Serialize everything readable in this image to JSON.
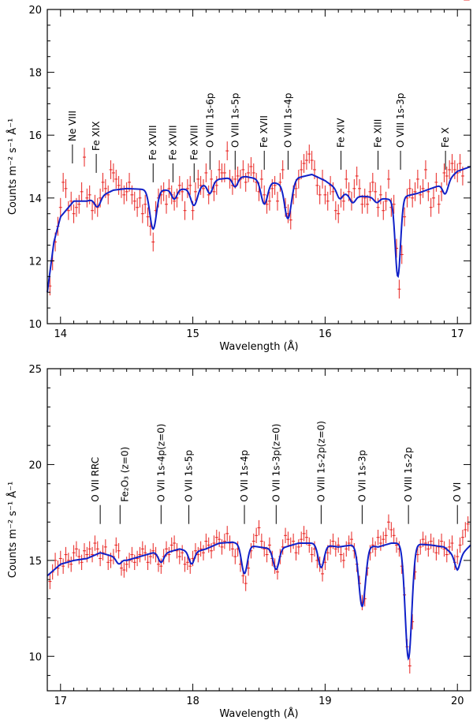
{
  "colors": {
    "data": "#e8221f",
    "model": "#1020c8",
    "axes": "#000000",
    "background": "#ffffff"
  },
  "chart_data": [
    {
      "type": "line",
      "panel": "top",
      "xlabel": "Wavelength (Å)",
      "ylabel": "Counts m⁻² s⁻¹ Å⁻¹",
      "xlim": [
        13.9,
        17.1
      ],
      "ylim": [
        10,
        20
      ],
      "xticks": [
        14,
        15,
        16,
        17
      ],
      "xtick_labels": [
        "14",
        "15",
        "16",
        "17"
      ],
      "yticks": [
        10,
        12,
        14,
        16,
        18,
        20
      ],
      "ytick_labels": [
        "10",
        "12",
        "14",
        "16",
        "18",
        "20"
      ],
      "line_labels": [
        {
          "wl": 14.09,
          "y_end": 15.1,
          "text": "Ne VIII"
        },
        {
          "wl": 14.27,
          "y_end": 14.8,
          "text": "Fe XIX"
        },
        {
          "wl": 14.7,
          "y_end": 14.5,
          "text": "Fe XVIII"
        },
        {
          "wl": 14.85,
          "y_end": 14.5,
          "text": "Fe XVIII"
        },
        {
          "wl": 15.01,
          "y_end": 14.5,
          "text": "Fe XVIII"
        },
        {
          "wl": 15.13,
          "y_end": 14.9,
          "text": "O VIII  1s-6p"
        },
        {
          "wl": 15.32,
          "y_end": 14.9,
          "text": "O VIII  1s-5p"
        },
        {
          "wl": 15.54,
          "y_end": 14.9,
          "text": "Fe XVII"
        },
        {
          "wl": 15.72,
          "y_end": 14.9,
          "text": "O VIII  1s-4p"
        },
        {
          "wl": 16.12,
          "y_end": 14.9,
          "text": "Fe XIV"
        },
        {
          "wl": 16.4,
          "y_end": 14.9,
          "text": "Fe XIII"
        },
        {
          "wl": 16.57,
          "y_end": 14.9,
          "text": "O VIII  1s-3p"
        },
        {
          "wl": 16.91,
          "y_end": 14.9,
          "text": "Fe X"
        }
      ],
      "model_continuum": [
        [
          13.9,
          11.0
        ],
        [
          13.95,
          12.6
        ],
        [
          14.0,
          13.4
        ],
        [
          14.1,
          13.9
        ],
        [
          14.2,
          13.9
        ],
        [
          14.3,
          14.05
        ],
        [
          14.4,
          14.25
        ],
        [
          14.5,
          14.3
        ],
        [
          14.6,
          14.28
        ],
        [
          14.8,
          14.25
        ],
        [
          15.0,
          14.3
        ],
        [
          15.1,
          14.45
        ],
        [
          15.2,
          14.6
        ],
        [
          15.3,
          14.65
        ],
        [
          15.4,
          14.68
        ],
        [
          15.5,
          14.6
        ],
        [
          15.6,
          14.5
        ],
        [
          15.7,
          14.4
        ],
        [
          15.8,
          14.65
        ],
        [
          15.9,
          14.75
        ],
        [
          16.0,
          14.55
        ],
        [
          16.1,
          14.25
        ],
        [
          16.2,
          14.05
        ],
        [
          16.3,
          14.05
        ],
        [
          16.4,
          14.0
        ],
        [
          16.5,
          13.95
        ],
        [
          16.6,
          14.05
        ],
        [
          16.7,
          14.15
        ],
        [
          16.8,
          14.3
        ],
        [
          16.9,
          14.45
        ],
        [
          17.0,
          14.85
        ],
        [
          17.1,
          15.0
        ]
      ],
      "model_absorptions": [
        {
          "wl": 14.28,
          "depth": 0.3,
          "sigma": 0.022
        },
        {
          "wl": 14.7,
          "depth": 1.25,
          "sigma": 0.025
        },
        {
          "wl": 14.86,
          "depth": 0.3,
          "sigma": 0.02
        },
        {
          "wl": 15.01,
          "depth": 0.55,
          "sigma": 0.025
        },
        {
          "wl": 15.13,
          "depth": 0.35,
          "sigma": 0.02
        },
        {
          "wl": 15.32,
          "depth": 0.3,
          "sigma": 0.02
        },
        {
          "wl": 15.54,
          "depth": 0.75,
          "sigma": 0.025
        },
        {
          "wl": 15.72,
          "depth": 1.1,
          "sigma": 0.025
        },
        {
          "wl": 16.11,
          "depth": 0.25,
          "sigma": 0.02
        },
        {
          "wl": 16.21,
          "depth": 0.2,
          "sigma": 0.02
        },
        {
          "wl": 16.39,
          "depth": 0.15,
          "sigma": 0.02
        },
        {
          "wl": 16.55,
          "depth": 2.5,
          "sigma": 0.02
        },
        {
          "wl": 16.91,
          "depth": 0.35,
          "sigma": 0.02
        }
      ],
      "points_wavelength": [
        13.92,
        13.94,
        13.96,
        13.98,
        14.0,
        14.02,
        14.04,
        14.06,
        14.08,
        14.1,
        14.12,
        14.14,
        14.16,
        14.18,
        14.2,
        14.22,
        14.24,
        14.26,
        14.28,
        14.3,
        14.32,
        14.34,
        14.36,
        14.38,
        14.4,
        14.42,
        14.44,
        14.46,
        14.48,
        14.5,
        14.52,
        14.54,
        14.56,
        14.58,
        14.6,
        14.62,
        14.64,
        14.66,
        14.68,
        14.7,
        14.72,
        14.74,
        14.76,
        14.78,
        14.8,
        14.82,
        14.84,
        14.86,
        14.88,
        14.9,
        14.92,
        14.94,
        14.96,
        14.98,
        15.0,
        15.02,
        15.04,
        15.06,
        15.08,
        15.1,
        15.12,
        15.14,
        15.16,
        15.18,
        15.2,
        15.22,
        15.24,
        15.26,
        15.28,
        15.3,
        15.32,
        15.34,
        15.36,
        15.38,
        15.4,
        15.42,
        15.44,
        15.46,
        15.48,
        15.5,
        15.52,
        15.54,
        15.56,
        15.58,
        15.6,
        15.62,
        15.64,
        15.66,
        15.68,
        15.7,
        15.72,
        15.74,
        15.76,
        15.78,
        15.8,
        15.82,
        15.84,
        15.86,
        15.88,
        15.9,
        15.92,
        15.94,
        15.96,
        15.98,
        16.0,
        16.02,
        16.04,
        16.06,
        16.08,
        16.1,
        16.12,
        16.14,
        16.16,
        16.18,
        16.2,
        16.22,
        16.24,
        16.26,
        16.28,
        16.3,
        16.32,
        16.34,
        16.36,
        16.38,
        16.4,
        16.42,
        16.44,
        16.46,
        16.48,
        16.5,
        16.52,
        16.54,
        16.56,
        16.58,
        16.6,
        16.62,
        16.64,
        16.66,
        16.68,
        16.7,
        16.72,
        16.74,
        16.76,
        16.78,
        16.8,
        16.82,
        16.84,
        16.86,
        16.88,
        16.9,
        16.92,
        16.94,
        16.96,
        16.98,
        17.0,
        17.02,
        17.04,
        17.06,
        17.08
      ],
      "points_counts": [
        11.2,
        12.0,
        12.6,
        13.1,
        13.7,
        14.5,
        14.3,
        13.6,
        13.9,
        13.5,
        13.7,
        13.8,
        14.2,
        15.3,
        14.0,
        14.1,
        13.6,
        13.8,
        13.7,
        14.0,
        14.5,
        14.3,
        14.1,
        14.9,
        14.8,
        14.6,
        14.4,
        14.3,
        14.1,
        14.2,
        14.5,
        14.1,
        13.9,
        13.7,
        14.0,
        13.5,
        13.8,
        13.4,
        13.1,
        12.6,
        13.6,
        14.0,
        14.1,
        14.2,
        13.8,
        14.3,
        14.1,
        13.9,
        14.0,
        14.4,
        14.2,
        13.6,
        14.3,
        14.4,
        13.6,
        14.2,
        14.6,
        14.4,
        14.3,
        14.8,
        14.1,
        14.6,
        14.2,
        14.4,
        14.9,
        14.8,
        14.8,
        15.5,
        14.6,
        14.4,
        14.6,
        14.7,
        14.6,
        14.9,
        14.5,
        14.8,
        15.0,
        14.8,
        14.5,
        14.2,
        14.6,
        14.1,
        13.8,
        13.9,
        14.3,
        14.4,
        13.9,
        14.5,
        14.9,
        13.7,
        13.5,
        13.3,
        14.1,
        14.3,
        14.6,
        14.9,
        15.1,
        15.2,
        15.4,
        15.2,
        14.9,
        14.4,
        14.1,
        14.6,
        14.1,
        13.9,
        14.4,
        14.2,
        13.6,
        13.5,
        14.0,
        13.9,
        14.6,
        14.2,
        13.9,
        14.3,
        14.7,
        14.3,
        13.8,
        14.0,
        13.8,
        14.2,
        14.5,
        14.2,
        13.7,
        14.1,
        13.6,
        13.9,
        14.6,
        13.7,
        13.8,
        12.4,
        11.1,
        12.2,
        13.4,
        14.0,
        14.3,
        14.0,
        14.2,
        14.6,
        14.1,
        14.3,
        14.9,
        14.2,
        13.7,
        14.0,
        14.5,
        13.8,
        14.2,
        14.8,
        14.7,
        14.9,
        15.1,
        14.9,
        14.8,
        15.1,
        14.7
      ],
      "points_error": 0.3
    },
    {
      "type": "line",
      "panel": "bottom",
      "xlabel": "Wavelength (Å)",
      "ylabel": "Counts m⁻² s⁻¹ Å⁻¹",
      "xlim": [
        16.9,
        20.1
      ],
      "ylim": [
        8.2,
        25
      ],
      "xticks": [
        17,
        18,
        19,
        20
      ],
      "xtick_labels": [
        "17",
        "18",
        "19",
        "20"
      ],
      "yticks": [
        10,
        15,
        20,
        25
      ],
      "ytick_labels": [
        "10",
        "15",
        "20",
        "25"
      ],
      "line_labels": [
        {
          "wl": 17.3,
          "y_end": 16.9,
          "text": "O VII RRC",
          "offset": -1
        },
        {
          "wl": 17.45,
          "y_end": 16.9,
          "text": "Fe₂O₃ (z=0)",
          "offset": 1
        },
        {
          "wl": 17.76,
          "y_end": 16.9,
          "text": "O VII  1s-4p(z=0)"
        },
        {
          "wl": 17.97,
          "y_end": 16.9,
          "text": "O VII  1s-5p"
        },
        {
          "wl": 18.39,
          "y_end": 16.9,
          "text": "O VII  1s-4p"
        },
        {
          "wl": 18.63,
          "y_end": 16.9,
          "text": "O VII  1s-3p(z=0)"
        },
        {
          "wl": 18.97,
          "y_end": 16.9,
          "text": "O VIII  1s-2p(z=0)"
        },
        {
          "wl": 19.28,
          "y_end": 16.9,
          "text": "O VII  1s-3p"
        },
        {
          "wl": 19.63,
          "y_end": 16.9,
          "text": "O VIII  1s-2p"
        },
        {
          "wl": 20.0,
          "y_end": 16.9,
          "text": "O VI"
        }
      ],
      "model_continuum": [
        [
          16.9,
          14.2
        ],
        [
          17.0,
          14.8
        ],
        [
          17.1,
          15.0
        ],
        [
          17.2,
          15.1
        ],
        [
          17.3,
          15.4
        ],
        [
          17.4,
          15.2
        ],
        [
          17.5,
          15.0
        ],
        [
          17.6,
          15.2
        ],
        [
          17.7,
          15.4
        ],
        [
          17.8,
          15.4
        ],
        [
          17.9,
          15.6
        ],
        [
          18.0,
          15.4
        ],
        [
          18.1,
          15.6
        ],
        [
          18.2,
          15.9
        ],
        [
          18.3,
          15.95
        ],
        [
          18.4,
          15.8
        ],
        [
          18.5,
          15.7
        ],
        [
          18.6,
          15.6
        ],
        [
          18.7,
          15.7
        ],
        [
          18.8,
          15.9
        ],
        [
          18.9,
          15.9
        ],
        [
          19.0,
          15.8
        ],
        [
          19.1,
          15.7
        ],
        [
          19.2,
          15.8
        ],
        [
          19.3,
          15.8
        ],
        [
          19.4,
          15.7
        ],
        [
          19.5,
          15.9
        ],
        [
          19.6,
          15.9
        ],
        [
          19.7,
          15.85
        ],
        [
          19.8,
          15.8
        ],
        [
          19.9,
          15.7
        ],
        [
          20.0,
          15.1
        ],
        [
          20.1,
          15.8
        ]
      ],
      "model_absorptions": [
        {
          "wl": 17.44,
          "depth": 0.3,
          "sigma": 0.02
        },
        {
          "wl": 17.76,
          "depth": 0.5,
          "sigma": 0.02
        },
        {
          "wl": 17.99,
          "depth": 0.6,
          "sigma": 0.02
        },
        {
          "wl": 18.39,
          "depth": 1.5,
          "sigma": 0.022
        },
        {
          "wl": 18.63,
          "depth": 1.1,
          "sigma": 0.022
        },
        {
          "wl": 18.97,
          "depth": 1.2,
          "sigma": 0.022
        },
        {
          "wl": 19.28,
          "depth": 3.2,
          "sigma": 0.025
        },
        {
          "wl": 19.63,
          "depth": 6.0,
          "sigma": 0.025
        },
        {
          "wl": 20.0,
          "depth": 0.6,
          "sigma": 0.02
        }
      ],
      "points_wavelength": [
        16.92,
        16.94,
        16.96,
        16.98,
        17.0,
        17.02,
        17.04,
        17.06,
        17.08,
        17.1,
        17.12,
        17.14,
        17.16,
        17.18,
        17.2,
        17.22,
        17.24,
        17.26,
        17.28,
        17.3,
        17.32,
        17.34,
        17.36,
        17.38,
        17.4,
        17.42,
        17.44,
        17.46,
        17.48,
        17.5,
        17.52,
        17.54,
        17.56,
        17.58,
        17.6,
        17.62,
        17.64,
        17.66,
        17.68,
        17.7,
        17.72,
        17.74,
        17.76,
        17.78,
        17.8,
        17.82,
        17.84,
        17.86,
        17.88,
        17.9,
        17.92,
        17.94,
        17.96,
        17.98,
        18.0,
        18.02,
        18.04,
        18.06,
        18.08,
        18.1,
        18.12,
        18.14,
        18.16,
        18.18,
        18.2,
        18.22,
        18.24,
        18.26,
        18.28,
        18.3,
        18.32,
        18.34,
        18.36,
        18.38,
        18.4,
        18.42,
        18.44,
        18.46,
        18.48,
        18.5,
        18.52,
        18.54,
        18.56,
        18.58,
        18.6,
        18.62,
        18.64,
        18.66,
        18.68,
        18.7,
        18.72,
        18.74,
        18.76,
        18.78,
        18.8,
        18.82,
        18.84,
        18.86,
        18.88,
        18.9,
        18.92,
        18.94,
        18.96,
        18.98,
        19.0,
        19.02,
        19.04,
        19.06,
        19.08,
        19.1,
        19.12,
        19.14,
        19.16,
        19.18,
        19.2,
        19.22,
        19.24,
        19.26,
        19.28,
        19.3,
        19.32,
        19.34,
        19.36,
        19.38,
        19.4,
        19.42,
        19.44,
        19.46,
        19.48,
        19.5,
        19.52,
        19.54,
        19.56,
        19.58,
        19.6,
        19.62,
        19.64,
        19.66,
        19.68,
        19.7,
        19.72,
        19.74,
        19.76,
        19.78,
        19.8,
        19.82,
        19.84,
        19.86,
        19.88,
        19.9,
        19.92,
        19.94,
        19.96,
        19.98,
        20.0,
        20.02,
        20.04,
        20.06,
        20.08
      ],
      "points_counts": [
        13.9,
        14.4,
        15.0,
        14.6,
        15.1,
        14.7,
        15.3,
        15.0,
        14.8,
        15.4,
        15.6,
        15.2,
        14.9,
        15.5,
        15.3,
        15.6,
        15.3,
        15.9,
        15.6,
        15.1,
        15.4,
        15.7,
        14.9,
        15.0,
        15.2,
        15.8,
        15.5,
        14.6,
        14.5,
        14.8,
        15.0,
        15.3,
        14.9,
        15.1,
        15.3,
        15.6,
        15.4,
        14.9,
        15.2,
        15.5,
        15.3,
        14.8,
        14.7,
        15.2,
        15.6,
        15.3,
        15.8,
        15.9,
        15.5,
        15.2,
        15.4,
        14.8,
        14.9,
        14.7,
        15.1,
        15.5,
        15.3,
        15.6,
        15.4,
        16.0,
        15.8,
        15.5,
        15.9,
        16.2,
        16.1,
        15.7,
        16.0,
        16.4,
        15.9,
        15.6,
        15.2,
        15.6,
        14.8,
        14.2,
        13.8,
        14.6,
        15.5,
        16.0,
        16.3,
        16.7,
        16.0,
        15.6,
        15.3,
        15.8,
        15.1,
        14.7,
        14.4,
        15.2,
        15.7,
        16.3,
        16.1,
        15.8,
        16.0,
        15.4,
        15.7,
        16.1,
        16.4,
        16.2,
        15.8,
        15.3,
        15.6,
        15.0,
        14.8,
        14.3,
        14.9,
        15.4,
        15.7,
        16.0,
        15.6,
        15.8,
        15.3,
        15.0,
        15.6,
        15.9,
        16.1,
        15.5,
        14.8,
        13.8,
        12.8,
        13.0,
        14.6,
        15.4,
        15.8,
        15.6,
        16.2,
        15.9,
        16.1,
        16.3,
        17.0,
        16.6,
        16.3,
        15.8,
        15.6,
        14.7,
        13.2,
        10.5,
        9.5,
        11.8,
        14.4,
        15.3,
        15.7,
        16.1,
        15.9,
        15.6,
        16.0,
        15.8,
        15.4,
        15.7,
        16.0,
        15.6,
        15.3,
        15.7,
        15.9,
        14.9,
        15.2,
        15.8,
        16.2,
        16.6,
        16.9
      ],
      "points_error": 0.4
    }
  ]
}
